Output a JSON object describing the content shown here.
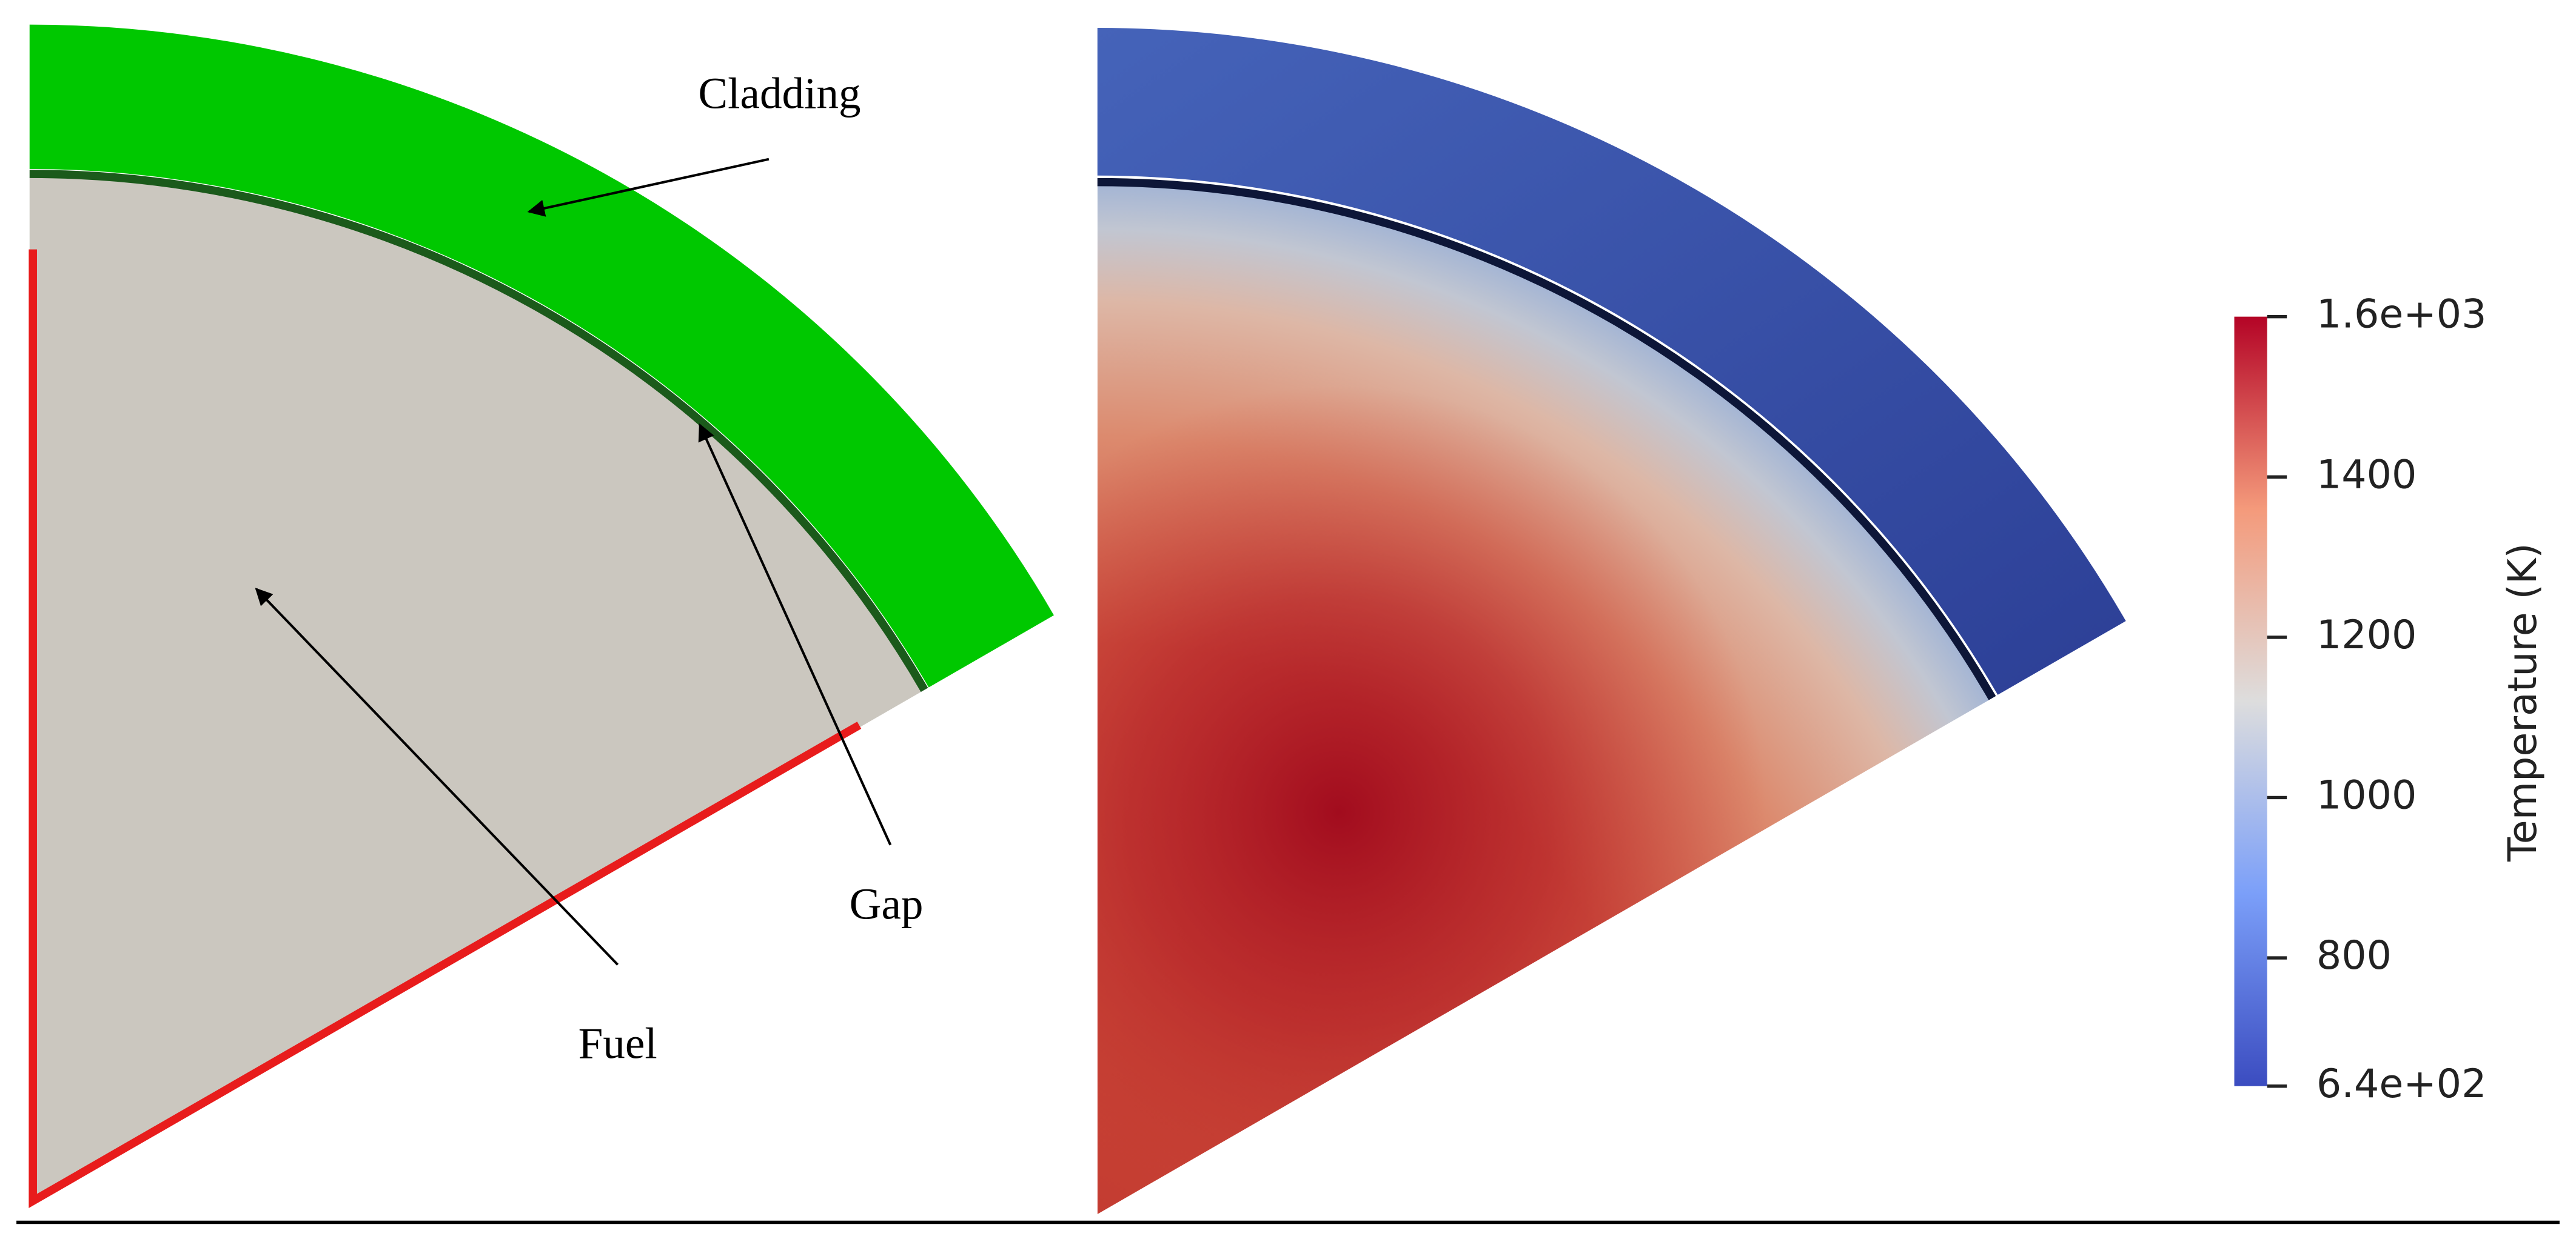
{
  "annotations": {
    "cladding": "Cladding",
    "gap": "Gap",
    "fuel": "Fuel"
  },
  "colorbar": {
    "title": "Temperature (K)",
    "lim": [
      640,
      1600
    ],
    "ticks": [
      {
        "value": 1600,
        "label": "1.6e+03"
      },
      1400,
      1200,
      1000,
      800,
      {
        "value": 640,
        "label": "6.4e+02"
      }
    ]
  }
}
